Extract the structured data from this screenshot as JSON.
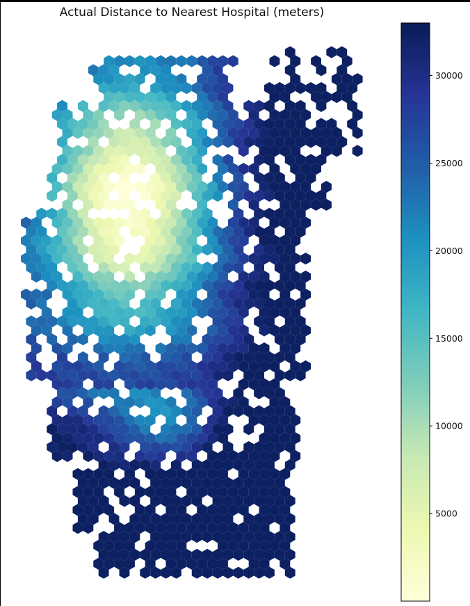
{
  "chart_data": {
    "type": "heatmap",
    "subtype": "hexbin",
    "title": "Actual Distance to Nearest Hospital (meters)",
    "xlabel": "",
    "ylabel": "",
    "colormap": "YlGnBu",
    "colorbar": {
      "range": [
        0,
        33000
      ],
      "ticks": [
        5000,
        10000,
        15000,
        20000,
        25000,
        30000
      ],
      "tick_labels": [
        "5000",
        "10000",
        "15000",
        "20000",
        "25000",
        "30000"
      ]
    },
    "grid": false,
    "axes_visible": false
  },
  "colors": {
    "colormap_stops": [
      "#ffffd9",
      "#edf8b1",
      "#c7e9b4",
      "#7fcdbb",
      "#41b6c4",
      "#1d91c0",
      "#225ea8",
      "#253494",
      "#081d58"
    ]
  }
}
